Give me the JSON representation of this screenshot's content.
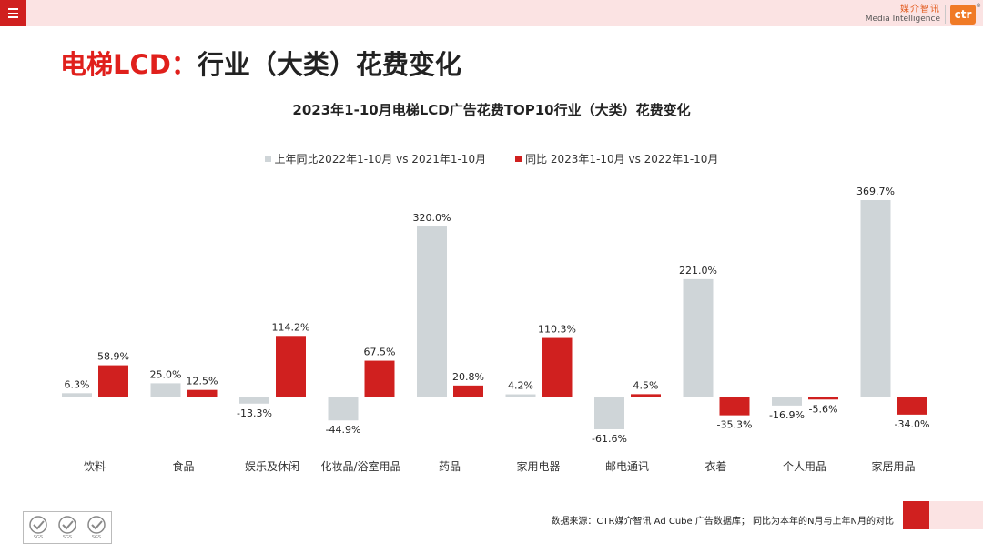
{
  "header": {
    "logo_cn": "媒介智讯",
    "logo_en": "Media Intelligence",
    "logo_mark": "ctr",
    "logo_reg": "®"
  },
  "title": {
    "highlight": "电梯LCD：",
    "rest": "行业（大类）花费变化"
  },
  "footer": {
    "source": "数据来源：CTR媒介智讯 Ad Cube 广告数据库； 同比为本年的N月与上年N月的对比",
    "cert_label": "SGS"
  },
  "colors": {
    "brand_red": "#d0201f",
    "series_prev": "#cfd5d8",
    "series_curr": "#d0201f"
  },
  "chart_data": {
    "type": "bar",
    "title": "2023年1-10月电梯LCD广告花费TOP10行业（大类）花费变化",
    "categories": [
      "饮料",
      "食品",
      "娱乐及休闲",
      "化妆品/浴室用品",
      "药品",
      "家用电器",
      "邮电通讯",
      "衣着",
      "个人用品",
      "家居用品"
    ],
    "series": [
      {
        "name": "上年同比2022年1-10月 vs 2021年1-10月",
        "color": "#cfd5d8",
        "values": [
          6.3,
          25.0,
          -13.3,
          -44.9,
          320.0,
          4.2,
          -61.6,
          221.0,
          -16.9,
          369.7
        ]
      },
      {
        "name": "同比 2023年1-10月 vs 2022年1-10月",
        "color": "#d0201f",
        "values": [
          58.9,
          12.5,
          114.2,
          67.5,
          20.8,
          110.3,
          4.5,
          -35.3,
          -5.6,
          -34.0
        ]
      }
    ],
    "value_suffix": "%",
    "ylim": [
      -61.6,
      369.7
    ],
    "legend_position": "top",
    "grid": false
  }
}
